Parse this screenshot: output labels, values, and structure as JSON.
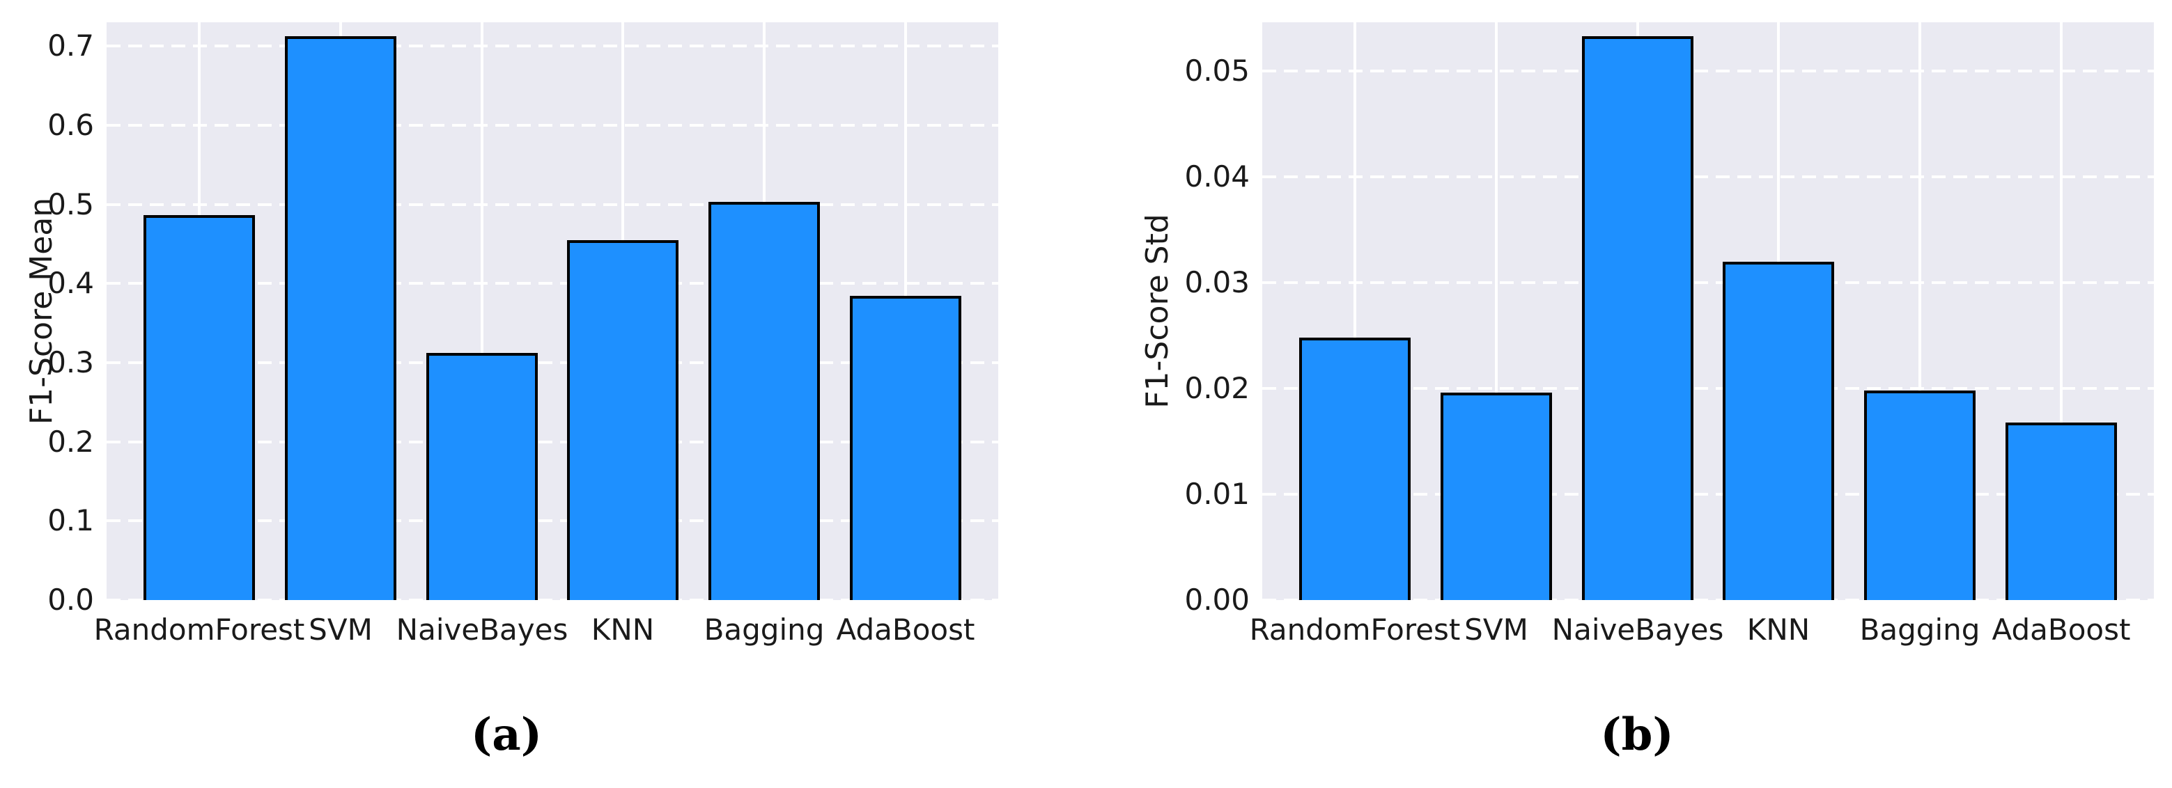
{
  "style": {
    "bar_fill": "#1E90FF",
    "bar_edge": "#000000",
    "plot_background": "#EAEAF2",
    "grid_color": "#FFFFFF",
    "text_color": "#1a1a1a",
    "page_background": "#FFFFFF"
  },
  "captions": [
    {
      "label": "(a)"
    },
    {
      "label": "(b)"
    }
  ],
  "chart_data": [
    {
      "type": "bar",
      "title": "",
      "xlabel": "",
      "ylabel": "F1-Score Mean",
      "categories": [
        "RandomForest",
        "SVM",
        "NaiveBayes",
        "KNN",
        "Bagging",
        "AdaBoost"
      ],
      "values": [
        0.486,
        0.712,
        0.312,
        0.455,
        0.503,
        0.384
      ],
      "ylim": [
        0,
        0.73
      ],
      "yticks": [
        0.0,
        0.1,
        0.2,
        0.3,
        0.4,
        0.5,
        0.6,
        0.7
      ],
      "ytick_labels": [
        "0.0",
        "0.1",
        "0.2",
        "0.3",
        "0.4",
        "0.5",
        "0.6",
        "0.7"
      ],
      "grid": true,
      "legend": null,
      "caption": "(a)"
    },
    {
      "type": "bar",
      "title": "",
      "xlabel": "",
      "ylabel": "F1-Score Std",
      "categories": [
        "RandomForest",
        "SVM",
        "NaiveBayes",
        "KNN",
        "Bagging",
        "AdaBoost"
      ],
      "values": [
        0.0248,
        0.0196,
        0.0533,
        0.032,
        0.0198,
        0.0168
      ],
      "ylim": [
        0,
        0.0546
      ],
      "yticks": [
        0.0,
        0.01,
        0.02,
        0.03,
        0.04,
        0.05
      ],
      "ytick_labels": [
        "0.00",
        "0.01",
        "0.02",
        "0.03",
        "0.04",
        "0.05"
      ],
      "grid": true,
      "legend": null,
      "caption": "(b)"
    }
  ]
}
